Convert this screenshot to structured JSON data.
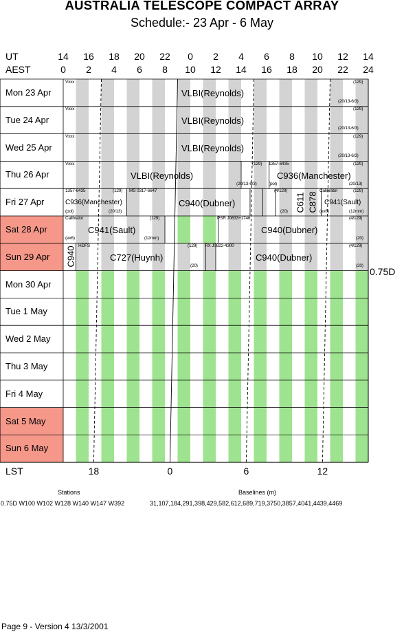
{
  "title": "AUSTRALIA TELESCOPE COMPACT ARRAY",
  "subtitle": "Schedule:- 23 Apr - 6  May",
  "ut_label": "UT",
  "aest_label": "AEST",
  "lst_label": "LST",
  "ut_ticks": [
    "14",
    "16",
    "18",
    "20",
    "22",
    "0",
    "2",
    "4",
    "6",
    "8",
    "10",
    "12",
    "14"
  ],
  "aest_ticks": [
    "0",
    "2",
    "4",
    "6",
    "8",
    "10",
    "12",
    "14",
    "16",
    "18",
    "20",
    "22",
    "24"
  ],
  "lst_ticks": [
    "18",
    "0",
    "6",
    "12"
  ],
  "days": [
    {
      "label": "Mon   23 Apr",
      "weekend": false
    },
    {
      "label": "Tue   24 Apr",
      "weekend": false
    },
    {
      "label": "Wed  25 Apr",
      "weekend": false
    },
    {
      "label": "Thu   26 Apr",
      "weekend": false
    },
    {
      "label": "Fri    27 Apr",
      "weekend": false
    },
    {
      "label": "Sat   28 Apr",
      "weekend": true
    },
    {
      "label": "Sun   29 Apr",
      "weekend": true
    },
    {
      "label": "Mon   30 Apr",
      "weekend": false
    },
    {
      "label": "Tue    1  May",
      "weekend": false
    },
    {
      "label": "Wed   2  May",
      "weekend": false
    },
    {
      "label": "Thu    3  May",
      "weekend": false
    },
    {
      "label": "Fri     4  May",
      "weekend": false
    },
    {
      "label": "Sat    5  May",
      "weekend": true
    },
    {
      "label": "Sun   6  May",
      "weekend": true
    }
  ],
  "config": "0.75D",
  "blocks": {
    "r0_main": "VLBI(Reynolds)",
    "r0_tl": "Vxxx",
    "r0_tr": "(129)",
    "r0_br": "(20/13-6/3)",
    "r1_main": "VLBI(Reynolds)",
    "r1_tl": "Vxxx",
    "r1_tr": "(129)",
    "r1_br": "(20/13-6/3)",
    "r2_main": "VLBI(Reynolds)",
    "r2_tl": "Vxxx",
    "r2_tr": "(129)",
    "r2_br": "(20/13-6/3)",
    "r3a_main": "VLBI(Reynolds)",
    "r3a_tl": "Vxxx",
    "r3a_tr": "(129)",
    "r3a_br": "(20/13-6/3)",
    "r3b_main": "C936(Manchester)",
    "r3b_tl": "1357-6435",
    "r3b_tr": "(129)",
    "r3b_bl": "(pol)",
    "r3b_br": "(20/13)",
    "r4a_main": "C936(Manchester)",
    "r4a_tl": "1357-6435",
    "r4a_tr": "(129)",
    "r4a_bl": "(pol)",
    "r4a_br": "(20/13)",
    "r4b_main": "C940(Dubner)",
    "r4b_tl": "MS 0317-6647",
    "r4b_tr": "(4/129)",
    "r4b_br": "(20)",
    "r4c_main": "C611",
    "r4d_main": "C878",
    "r4e_main": "C941(Sault)",
    "r4e_tl": "Calibrator",
    "r4e_tr": "(129)",
    "r4e_bl": "(ex6)",
    "r4e_br": "(12mm)",
    "r5a_main": "C941(Sault)",
    "r5a_tl": "Calibrator",
    "r5a_tr": "(129)",
    "r5a_bl": "(ex6)",
    "r5a_br": "(12mm)",
    "r5b_main": "C940(Dubner)",
    "r5b_tl": "PSR J0633+1746",
    "r5b_tr": "(4/129)",
    "r5b_br": "(20)",
    "r6a_main": "C940",
    "r6b_main": "C727(Huynh)",
    "r6b_tl": "HDFS",
    "r6b_tr": "(129)",
    "r6b_br": "(20)",
    "r6c_main": "C940(Dubner)",
    "r6c_tl": "RX J0822-4300",
    "r6c_tr": "(4/129)",
    "r6c_br": "(20)"
  },
  "stations_label": "Stations",
  "stations": "0.75D  W100 W102  W128  W140  W147  W392",
  "baselines_label": "Baselines (m)",
  "baselines": "31,107,184,291,398,429,582,612,689,719,3750,3857,4041,4439,4469",
  "footer": "Page 9 - Version 4   13/3/2001",
  "colors": {
    "weekend": "#f5988a",
    "grey": "#d3d3d3",
    "green": "#9ee38f"
  }
}
